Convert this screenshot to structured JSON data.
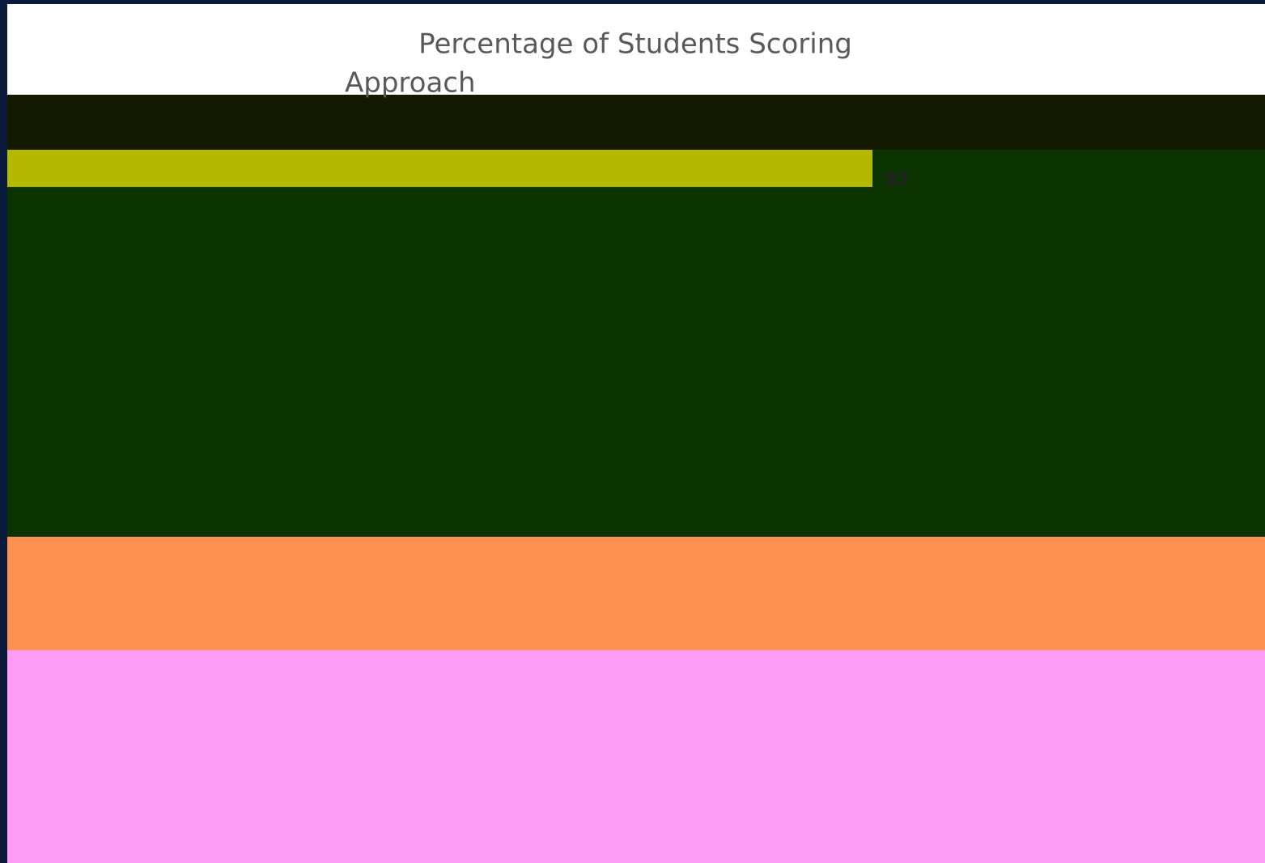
{
  "chart_data": {
    "type": "hbar",
    "title": "Percentage of Students Scoring",
    "subtitle": "Approach",
    "categories": [
      null
    ],
    "values": [
      83
    ],
    "color": "#b5b800"
  }
}
